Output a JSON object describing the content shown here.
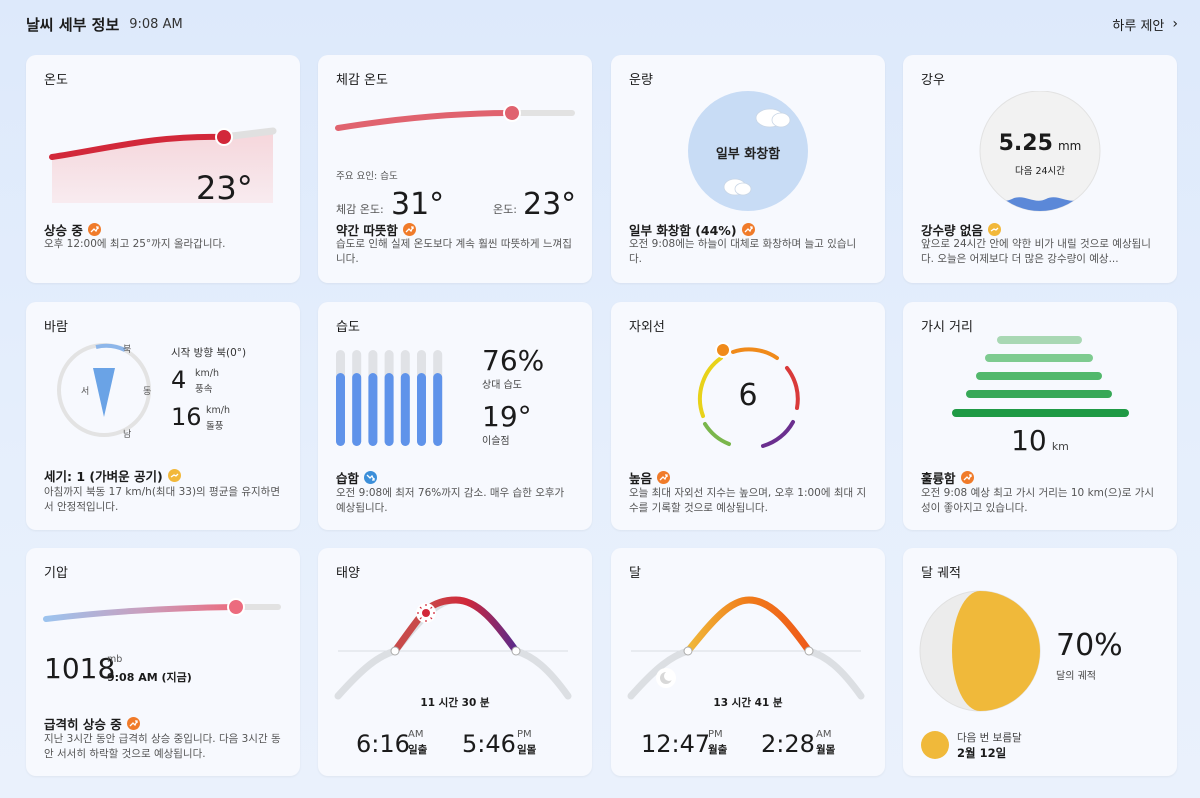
{
  "header": {
    "title": "날씨 세부 정보",
    "time": "9:08 AM",
    "link": "하루 제안"
  },
  "temperature": {
    "title": "온도",
    "value": "23°",
    "status": "상승 중",
    "desc": "오후 12:00에 최고 25°까지 올라갑니다."
  },
  "feels_like": {
    "title": "체감 온도",
    "factor": "주요 요인: 습도",
    "feels_label": "체감 온도:",
    "feels_value": "31°",
    "temp_label": "온도:",
    "temp_value": "23°",
    "status": "약간 따뜻함",
    "desc": "습도로 인해 실제 온도보다 계속 훨씬 따뜻하게 느껴집니다."
  },
  "cloud": {
    "title": "운량",
    "center": "일부 화창함",
    "status": "일부 화창함 (44%)",
    "desc": "오전 9:08에는 하늘이 대체로 화창하며 늘고 있습니다."
  },
  "rain": {
    "title": "강우",
    "value": "5.25",
    "unit": "mm",
    "sub": "다음 24시간",
    "status": "강수량 없음",
    "desc": "앞으로 24시간 안에 약한 비가 내릴 것으로 예상됩니다. 오늘은 어제보다 더 많은 강수량이 예상..."
  },
  "wind": {
    "title": "바람",
    "dir_label": "시작 방향 북(0°)",
    "speed": "4",
    "speed_unit": "km/h",
    "speed_label": "풍속",
    "gust": "16",
    "gust_unit": "km/h",
    "gust_label": "돌풍",
    "n": "북",
    "s": "남",
    "e": "동",
    "w": "서",
    "status": "세기: 1 (가벼운 공기)",
    "desc": "아침까지 북동 17 km/h(최대 33)의 평균을 유지하면서 안정적입니다."
  },
  "humidity": {
    "title": "습도",
    "value": "76%",
    "value_label": "상대 습도",
    "dew": "19°",
    "dew_label": "이슬점",
    "status": "습함",
    "desc": "오전 9:08에 최저 76%까지 감소. 매우 습한 오후가 예상됩니다.",
    "bar_fill": 0.76
  },
  "uv": {
    "title": "자외선",
    "value": "6",
    "status": "높음",
    "desc": "오늘 최대 자외선 지수는 높으며, 오후 1:00에 최대 지수를 기록할 것으로 예상됩니다."
  },
  "visibility": {
    "title": "가시 거리",
    "value": "10",
    "unit": "km",
    "status": "훌륭함",
    "desc": "오전 9:08 예상 최고 가시 거리는 10 km(으)로 가시성이 좋아지고 있습니다."
  },
  "pressure": {
    "title": "기압",
    "value": "1018",
    "unit": "mb",
    "time": "9:08 AM (지금)",
    "status": "급격히 상승 중",
    "desc": "지난 3시간 동안 급격히 상승 중입니다. 다음 3시간 동안 서서히 하락할 것으로 예상됩니다."
  },
  "sun": {
    "title": "태양",
    "duration": "11 시간 30 분",
    "rise": "6:16",
    "rise_ampm": "AM",
    "rise_label": "일출",
    "set": "5:46",
    "set_ampm": "PM",
    "set_label": "일몰"
  },
  "moon": {
    "title": "달",
    "duration": "13 시간 41 분",
    "rise": "12:47",
    "rise_ampm": "PM",
    "rise_label": "월출",
    "set": "2:28",
    "set_ampm": "AM",
    "set_label": "월몰"
  },
  "moon_phase": {
    "title": "달 궤적",
    "value": "70%",
    "label": "달의 궤적",
    "next_label": "다음 번 보름달",
    "next_date": "2월 12일"
  },
  "colors": {
    "accent_red": "#d2283a",
    "orange": "#f07b2a",
    "yellow": "#f2b83a",
    "blue": "#3c8fd9",
    "green": "#2ea44f",
    "moon_yellow": "#f0b93a"
  },
  "icons": [
    "chevron-right-icon",
    "trend-up-icon",
    "trend-down-icon",
    "cloud-icon",
    "sun-icon",
    "moon-icon",
    "wave-icon",
    "compass-needle-icon"
  ]
}
